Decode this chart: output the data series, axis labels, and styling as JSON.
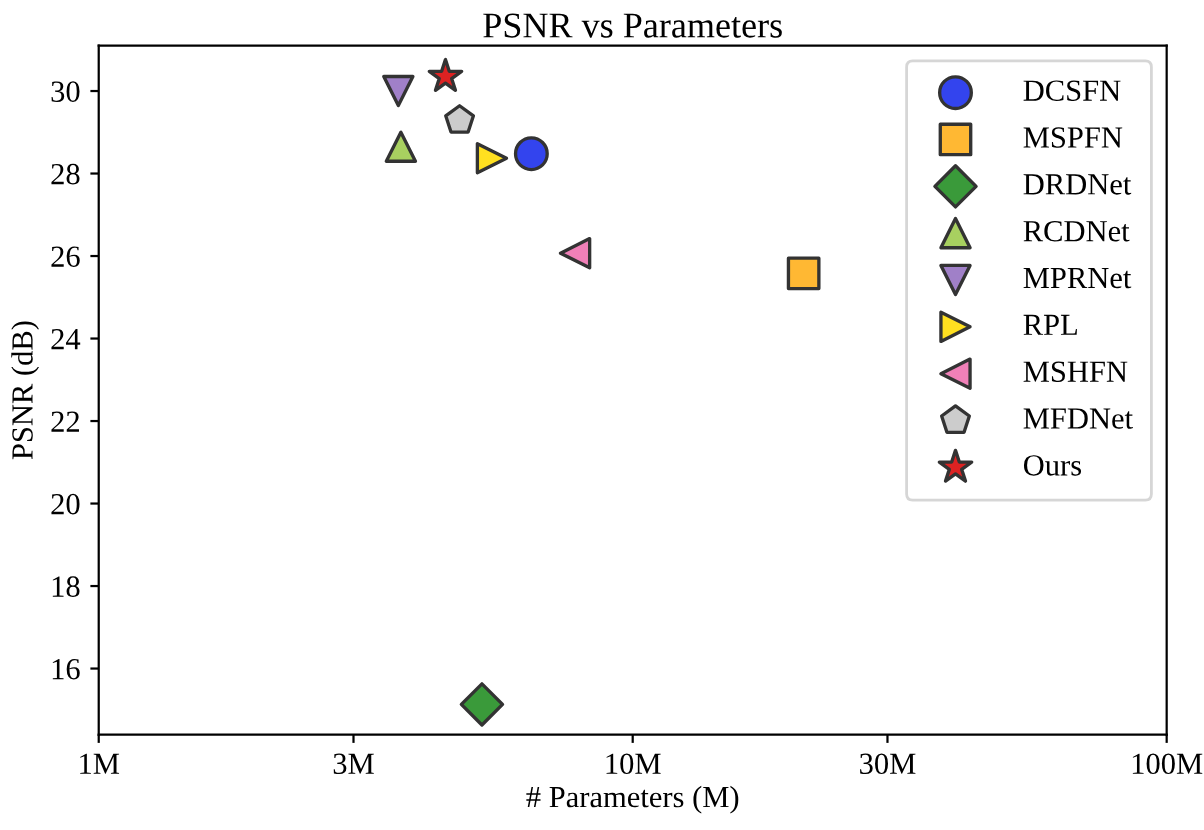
{
  "chart_data": {
    "type": "scatter",
    "title": "PSNR vs Parameters",
    "xlabel": "# Parameters (M)",
    "ylabel": "PSNR (dB)",
    "log": "x",
    "xlim": [
      1,
      100
    ],
    "ylim": [
      14.4,
      31.1
    ],
    "xticks": [
      {
        "value": 1,
        "label": "1M"
      },
      {
        "value": 3,
        "label": "3M"
      },
      {
        "value": 10,
        "label": "10M"
      },
      {
        "value": 30,
        "label": "30M"
      },
      {
        "value": 100,
        "label": "100M"
      }
    ],
    "yticks": [
      16,
      18,
      20,
      22,
      24,
      26,
      28,
      30
    ],
    "grid": false,
    "legend": "top right",
    "series": [
      {
        "name": "DCSFN",
        "color": "#3344ee",
        "marker": "circle",
        "x": [
          6.46
        ],
        "values": [
          28.48
        ]
      },
      {
        "name": "MSPFN",
        "color": "#ffb833",
        "marker": "square",
        "x": [
          20.9
        ],
        "values": [
          25.58
        ]
      },
      {
        "name": "DRDNet",
        "color": "#3a9a3a",
        "marker": "diamond",
        "x": [
          5.22
        ],
        "values": [
          15.13
        ]
      },
      {
        "name": "RCDNet",
        "color": "#a8d060",
        "marker": "triangle",
        "x": [
          3.68
        ],
        "values": [
          28.65
        ]
      },
      {
        "name": "MPRNet",
        "color": "#a080c8",
        "marker": "triangle_down",
        "x": [
          3.64
        ],
        "values": [
          30.0
        ]
      },
      {
        "name": "RPL",
        "color": "#ffe020",
        "marker": "triangle_right",
        "x": [
          5.45
        ],
        "values": [
          28.37
        ]
      },
      {
        "name": "MSHFN",
        "color": "#f080b8",
        "marker": "triangle_left",
        "x": [
          7.8
        ],
        "values": [
          26.07
        ]
      },
      {
        "name": "MFDNet",
        "color": "#cccccc",
        "x": [
          4.74
        ],
        "values": [
          29.29
        ]
      },
      {
        "name": "Ours",
        "color": "#dd2222",
        "marker": "star",
        "x": [
          4.46
        ],
        "values": [
          30.35
        ]
      }
    ]
  }
}
